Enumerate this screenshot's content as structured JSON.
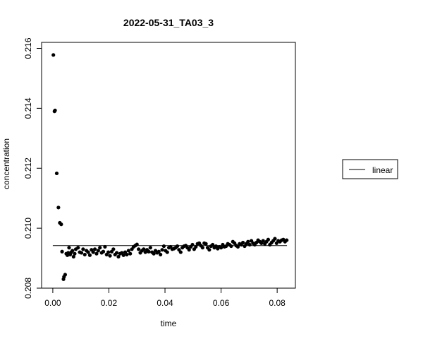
{
  "chart_data": {
    "type": "scatter",
    "title": "2022-05-31_TA03_3",
    "xlabel": "time",
    "ylabel": "concentration",
    "xlim": [
      -0.004,
      0.0865
    ],
    "ylim": [
      0.208,
      0.2162
    ],
    "xticks": [
      0.0,
      0.02,
      0.04,
      0.06,
      0.08
    ],
    "xtick_labels": [
      "0.00",
      "0.02",
      "0.04",
      "0.06",
      "0.08"
    ],
    "yticks": [
      0.208,
      0.21,
      0.212,
      0.214,
      0.216
    ],
    "ytick_labels": [
      "0.208",
      "0.210",
      "0.212",
      "0.214",
      "0.216"
    ],
    "grid": false,
    "legend": {
      "position": "right",
      "entries": [
        "linear"
      ]
    },
    "fit_line": {
      "name": "linear",
      "x": [
        0.0,
        0.0835
      ],
      "y": [
        0.20942,
        0.20942
      ]
    },
    "points": [
      [
        0.0002,
        0.21578
      ],
      [
        0.0006,
        0.2139
      ],
      [
        0.0008,
        0.21393
      ],
      [
        0.0014,
        0.21183
      ],
      [
        0.002,
        0.21069
      ],
      [
        0.0025,
        0.21018
      ],
      [
        0.003,
        0.21013
      ],
      [
        0.0033,
        0.20922
      ],
      [
        0.0038,
        0.2083
      ],
      [
        0.004,
        0.20838
      ],
      [
        0.0044,
        0.20845
      ],
      [
        0.0048,
        0.20915
      ],
      [
        0.0052,
        0.2091
      ],
      [
        0.0055,
        0.20918
      ],
      [
        0.0058,
        0.20935
      ],
      [
        0.0062,
        0.20912
      ],
      [
        0.0066,
        0.2092
      ],
      [
        0.007,
        0.20925
      ],
      [
        0.0074,
        0.20905
      ],
      [
        0.0078,
        0.20915
      ],
      [
        0.0082,
        0.2093
      ],
      [
        0.009,
        0.20935
      ],
      [
        0.0096,
        0.2092
      ],
      [
        0.0102,
        0.20918
      ],
      [
        0.0108,
        0.2093
      ],
      [
        0.0114,
        0.20912
      ],
      [
        0.012,
        0.20925
      ],
      [
        0.0126,
        0.2092
      ],
      [
        0.0132,
        0.2091
      ],
      [
        0.0138,
        0.20928
      ],
      [
        0.0144,
        0.2092
      ],
      [
        0.015,
        0.2093
      ],
      [
        0.0156,
        0.20915
      ],
      [
        0.0162,
        0.20925
      ],
      [
        0.0168,
        0.20935
      ],
      [
        0.0174,
        0.20918
      ],
      [
        0.018,
        0.20922
      ],
      [
        0.0186,
        0.20938
      ],
      [
        0.0192,
        0.20912
      ],
      [
        0.0198,
        0.2092
      ],
      [
        0.0204,
        0.20908
      ],
      [
        0.021,
        0.20922
      ],
      [
        0.0216,
        0.2093
      ],
      [
        0.0222,
        0.20912
      ],
      [
        0.0228,
        0.20918
      ],
      [
        0.0234,
        0.20905
      ],
      [
        0.024,
        0.20915
      ],
      [
        0.0246,
        0.20918
      ],
      [
        0.0252,
        0.2091
      ],
      [
        0.0258,
        0.2092
      ],
      [
        0.0264,
        0.20912
      ],
      [
        0.027,
        0.20925
      ],
      [
        0.0276,
        0.20915
      ],
      [
        0.0282,
        0.2093
      ],
      [
        0.0288,
        0.20938
      ],
      [
        0.0294,
        0.20942
      ],
      [
        0.03,
        0.20946
      ],
      [
        0.0306,
        0.2093
      ],
      [
        0.0312,
        0.20918
      ],
      [
        0.0318,
        0.20925
      ],
      [
        0.0324,
        0.2093
      ],
      [
        0.033,
        0.2092
      ],
      [
        0.0336,
        0.20928
      ],
      [
        0.0342,
        0.20922
      ],
      [
        0.0348,
        0.20935
      ],
      [
        0.0354,
        0.2092
      ],
      [
        0.036,
        0.20915
      ],
      [
        0.0366,
        0.20925
      ],
      [
        0.0372,
        0.20918
      ],
      [
        0.0378,
        0.20922
      ],
      [
        0.0384,
        0.20912
      ],
      [
        0.039,
        0.20928
      ],
      [
        0.0396,
        0.2094
      ],
      [
        0.0402,
        0.20925
      ],
      [
        0.0408,
        0.2092
      ],
      [
        0.0414,
        0.20935
      ],
      [
        0.042,
        0.20938
      ],
      [
        0.0426,
        0.2093
      ],
      [
        0.0432,
        0.20932
      ],
      [
        0.0438,
        0.20935
      ],
      [
        0.0444,
        0.2094
      ],
      [
        0.045,
        0.20928
      ],
      [
        0.0456,
        0.2092
      ],
      [
        0.0462,
        0.20935
      ],
      [
        0.0468,
        0.2094
      ],
      [
        0.0474,
        0.20942
      ],
      [
        0.048,
        0.20935
      ],
      [
        0.0486,
        0.20928
      ],
      [
        0.0492,
        0.20938
      ],
      [
        0.0498,
        0.20945
      ],
      [
        0.0504,
        0.2093
      ],
      [
        0.051,
        0.20938
      ],
      [
        0.0516,
        0.20948
      ],
      [
        0.0522,
        0.2095
      ],
      [
        0.0528,
        0.20942
      ],
      [
        0.0534,
        0.20935
      ],
      [
        0.054,
        0.2095
      ],
      [
        0.0546,
        0.20948
      ],
      [
        0.0552,
        0.20935
      ],
      [
        0.0558,
        0.20928
      ],
      [
        0.0564,
        0.2094
      ],
      [
        0.057,
        0.20945
      ],
      [
        0.0576,
        0.20935
      ],
      [
        0.0582,
        0.2094
      ],
      [
        0.0588,
        0.20932
      ],
      [
        0.0594,
        0.20938
      ],
      [
        0.06,
        0.20935
      ],
      [
        0.0606,
        0.20945
      ],
      [
        0.0612,
        0.20938
      ],
      [
        0.0618,
        0.2094
      ],
      [
        0.0624,
        0.20948
      ],
      [
        0.063,
        0.20945
      ],
      [
        0.0636,
        0.2094
      ],
      [
        0.0642,
        0.20955
      ],
      [
        0.0648,
        0.2095
      ],
      [
        0.0654,
        0.20942
      ],
      [
        0.066,
        0.20938
      ],
      [
        0.0666,
        0.20948
      ],
      [
        0.0672,
        0.20945
      ],
      [
        0.0678,
        0.20952
      ],
      [
        0.0684,
        0.2094
      ],
      [
        0.069,
        0.20948
      ],
      [
        0.0696,
        0.20955
      ],
      [
        0.0702,
        0.20945
      ],
      [
        0.0708,
        0.20958
      ],
      [
        0.0714,
        0.2095
      ],
      [
        0.072,
        0.20945
      ],
      [
        0.0726,
        0.20952
      ],
      [
        0.0732,
        0.2096
      ],
      [
        0.0738,
        0.20955
      ],
      [
        0.0744,
        0.2095
      ],
      [
        0.075,
        0.20958
      ],
      [
        0.0756,
        0.20948
      ],
      [
        0.0762,
        0.20955
      ],
      [
        0.0768,
        0.20962
      ],
      [
        0.0774,
        0.20945
      ],
      [
        0.078,
        0.20952
      ],
      [
        0.0786,
        0.20958
      ],
      [
        0.0792,
        0.20965
      ],
      [
        0.0798,
        0.2095
      ],
      [
        0.0804,
        0.20958
      ],
      [
        0.081,
        0.20955
      ],
      [
        0.0816,
        0.2096
      ],
      [
        0.0822,
        0.20962
      ],
      [
        0.0828,
        0.20955
      ],
      [
        0.0834,
        0.2096
      ]
    ]
  }
}
